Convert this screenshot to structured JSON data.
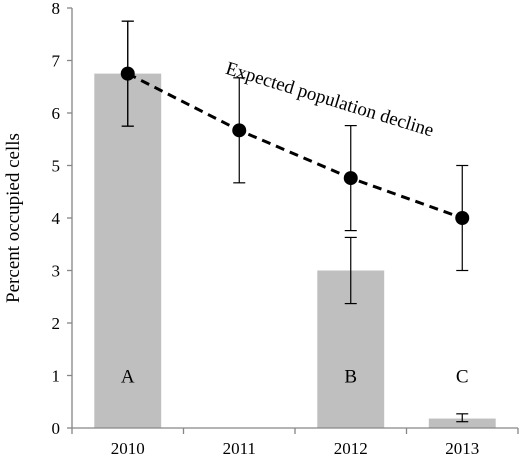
{
  "chart_data": {
    "type": "bar",
    "ylabel": "Percent occupied cells",
    "xlabel": "",
    "ylim": [
      0,
      8
    ],
    "yticks": [
      "0",
      "1",
      "2",
      "3",
      "4",
      "5",
      "6",
      "7",
      "8"
    ],
    "categories": [
      "2010",
      "2011",
      "2012",
      "2013"
    ],
    "grid": false,
    "legend": "none",
    "bars": {
      "values": [
        6.75,
        0,
        3.0,
        0.18
      ],
      "error_low": [
        5.75,
        null,
        2.37,
        0.12
      ],
      "error_high": [
        7.75,
        null,
        3.63,
        0.27
      ],
      "labels": [
        "A",
        "",
        "B",
        "C"
      ],
      "color": "#bfbfbf"
    },
    "line": {
      "values": [
        6.75,
        5.67,
        4.76,
        4.0
      ],
      "error_low": [
        5.75,
        4.67,
        3.76,
        3.0
      ],
      "error_high": [
        7.75,
        6.67,
        5.76,
        5.0
      ],
      "annotation": "Expected population decline",
      "style": "dashed",
      "color": "#000000"
    }
  }
}
